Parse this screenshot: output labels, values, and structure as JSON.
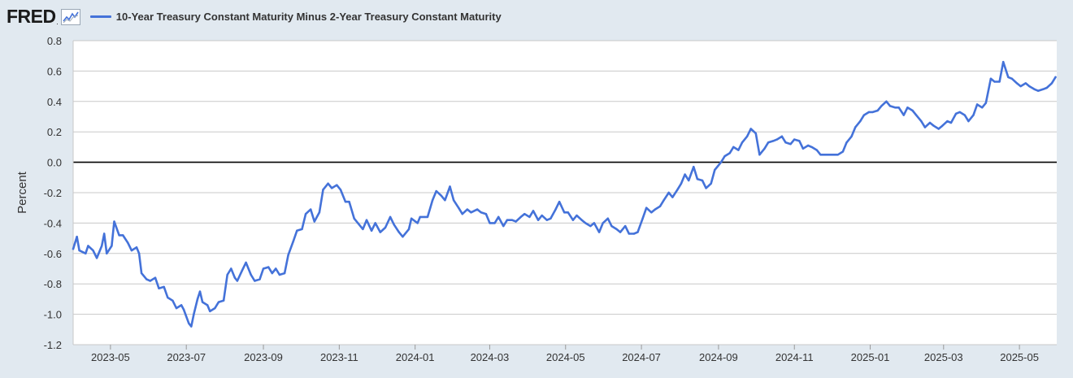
{
  "header": {
    "logo_text": "FRED",
    "logo_icon": "graph-icon",
    "legend_label": "10-Year Treasury Constant Maturity Minus 2-Year Treasury Constant Maturity"
  },
  "chart_data": {
    "type": "line",
    "ylabel": "Percent",
    "xlabel": "",
    "ylim": [
      -1.2,
      0.8
    ],
    "yticks": [
      "0.8",
      "0.6",
      "0.4",
      "0.2",
      "0.0",
      "-0.2",
      "-0.4",
      "-0.6",
      "-0.8",
      "-1.0",
      "-1.2"
    ],
    "xlim": [
      "2023-04-01",
      "2025-05-31"
    ],
    "xticks": [
      "2023-05",
      "2023-07",
      "2023-09",
      "2023-11",
      "2024-01",
      "2024-03",
      "2024-05",
      "2024-07",
      "2024-09",
      "2024-11",
      "2025-01",
      "2025-03",
      "2025-05"
    ],
    "grid": "horizontal",
    "zero_line": true,
    "line_color": "#4472d9",
    "series": [
      {
        "name": "10-Year Treasury Constant Maturity Minus 2-Year Treasury Constant Maturity",
        "points": [
          [
            "2023-04-01",
            -0.57
          ],
          [
            "2023-04-04",
            -0.49
          ],
          [
            "2023-04-06",
            -0.58
          ],
          [
            "2023-04-11",
            -0.6
          ],
          [
            "2023-04-13",
            -0.55
          ],
          [
            "2023-04-17",
            -0.58
          ],
          [
            "2023-04-20",
            -0.63
          ],
          [
            "2023-04-24",
            -0.55
          ],
          [
            "2023-04-26",
            -0.47
          ],
          [
            "2023-04-28",
            -0.6
          ],
          [
            "2023-05-02",
            -0.55
          ],
          [
            "2023-05-04",
            -0.39
          ],
          [
            "2023-05-08",
            -0.48
          ],
          [
            "2023-05-11",
            -0.48
          ],
          [
            "2023-05-15",
            -0.53
          ],
          [
            "2023-05-18",
            -0.58
          ],
          [
            "2023-05-22",
            -0.56
          ],
          [
            "2023-05-24",
            -0.6
          ],
          [
            "2023-05-26",
            -0.73
          ],
          [
            "2023-05-30",
            -0.77
          ],
          [
            "2023-06-02",
            -0.78
          ],
          [
            "2023-06-06",
            -0.76
          ],
          [
            "2023-06-09",
            -0.83
          ],
          [
            "2023-06-13",
            -0.82
          ],
          [
            "2023-06-16",
            -0.89
          ],
          [
            "2023-06-20",
            -0.91
          ],
          [
            "2023-06-23",
            -0.96
          ],
          [
            "2023-06-27",
            -0.94
          ],
          [
            "2023-06-29",
            -0.97
          ],
          [
            "2023-07-03",
            -1.06
          ],
          [
            "2023-07-05",
            -1.08
          ],
          [
            "2023-07-07",
            -1.0
          ],
          [
            "2023-07-10",
            -0.9
          ],
          [
            "2023-07-12",
            -0.85
          ],
          [
            "2023-07-14",
            -0.92
          ],
          [
            "2023-07-18",
            -0.94
          ],
          [
            "2023-07-20",
            -0.98
          ],
          [
            "2023-07-24",
            -0.96
          ],
          [
            "2023-07-27",
            -0.92
          ],
          [
            "2023-07-31",
            -0.91
          ],
          [
            "2023-08-03",
            -0.74
          ],
          [
            "2023-08-06",
            -0.7
          ],
          [
            "2023-08-09",
            -0.76
          ],
          [
            "2023-08-11",
            -0.78
          ],
          [
            "2023-08-15",
            -0.71
          ],
          [
            "2023-08-18",
            -0.66
          ],
          [
            "2023-08-22",
            -0.74
          ],
          [
            "2023-08-25",
            -0.78
          ],
          [
            "2023-08-29",
            -0.77
          ],
          [
            "2023-09-01",
            -0.7
          ],
          [
            "2023-09-05",
            -0.69
          ],
          [
            "2023-09-08",
            -0.73
          ],
          [
            "2023-09-11",
            -0.7
          ],
          [
            "2023-09-14",
            -0.74
          ],
          [
            "2023-09-18",
            -0.73
          ],
          [
            "2023-09-21",
            -0.61
          ],
          [
            "2023-09-25",
            -0.52
          ],
          [
            "2023-09-28",
            -0.45
          ],
          [
            "2023-10-02",
            -0.44
          ],
          [
            "2023-10-05",
            -0.34
          ],
          [
            "2023-10-09",
            -0.31
          ],
          [
            "2023-10-12",
            -0.39
          ],
          [
            "2023-10-16",
            -0.33
          ],
          [
            "2023-10-19",
            -0.18
          ],
          [
            "2023-10-23",
            -0.14
          ],
          [
            "2023-10-26",
            -0.17
          ],
          [
            "2023-10-30",
            -0.15
          ],
          [
            "2023-11-02",
            -0.18
          ],
          [
            "2023-11-06",
            -0.26
          ],
          [
            "2023-11-09",
            -0.26
          ],
          [
            "2023-11-13",
            -0.37
          ],
          [
            "2023-11-16",
            -0.4
          ],
          [
            "2023-11-20",
            -0.44
          ],
          [
            "2023-11-23",
            -0.38
          ],
          [
            "2023-11-27",
            -0.45
          ],
          [
            "2023-11-30",
            -0.4
          ],
          [
            "2023-12-04",
            -0.46
          ],
          [
            "2023-12-08",
            -0.43
          ],
          [
            "2023-12-12",
            -0.36
          ],
          [
            "2023-12-15",
            -0.41
          ],
          [
            "2023-12-19",
            -0.46
          ],
          [
            "2023-12-22",
            -0.49
          ],
          [
            "2023-12-27",
            -0.44
          ],
          [
            "2023-12-29",
            -0.37
          ],
          [
            "2024-01-03",
            -0.4
          ],
          [
            "2024-01-05",
            -0.36
          ],
          [
            "2024-01-09",
            -0.36
          ],
          [
            "2024-01-11",
            -0.36
          ],
          [
            "2024-01-15",
            -0.25
          ],
          [
            "2024-01-18",
            -0.19
          ],
          [
            "2024-01-22",
            -0.22
          ],
          [
            "2024-01-25",
            -0.25
          ],
          [
            "2024-01-29",
            -0.16
          ],
          [
            "2024-02-01",
            -0.25
          ],
          [
            "2024-02-05",
            -0.3
          ],
          [
            "2024-02-08",
            -0.34
          ],
          [
            "2024-02-12",
            -0.31
          ],
          [
            "2024-02-15",
            -0.33
          ],
          [
            "2024-02-20",
            -0.31
          ],
          [
            "2024-02-23",
            -0.33
          ],
          [
            "2024-02-27",
            -0.34
          ],
          [
            "2024-03-01",
            -0.4
          ],
          [
            "2024-03-05",
            -0.4
          ],
          [
            "2024-03-08",
            -0.36
          ],
          [
            "2024-03-12",
            -0.42
          ],
          [
            "2024-03-15",
            -0.38
          ],
          [
            "2024-03-19",
            -0.38
          ],
          [
            "2024-03-22",
            -0.39
          ],
          [
            "2024-03-26",
            -0.36
          ],
          [
            "2024-03-29",
            -0.34
          ],
          [
            "2024-04-02",
            -0.36
          ],
          [
            "2024-04-05",
            -0.32
          ],
          [
            "2024-04-09",
            -0.38
          ],
          [
            "2024-04-12",
            -0.35
          ],
          [
            "2024-04-16",
            -0.38
          ],
          [
            "2024-04-19",
            -0.37
          ],
          [
            "2024-04-23",
            -0.31
          ],
          [
            "2024-04-26",
            -0.26
          ],
          [
            "2024-04-30",
            -0.33
          ],
          [
            "2024-05-03",
            -0.33
          ],
          [
            "2024-05-07",
            -0.38
          ],
          [
            "2024-05-10",
            -0.35
          ],
          [
            "2024-05-14",
            -0.38
          ],
          [
            "2024-05-17",
            -0.4
          ],
          [
            "2024-05-21",
            -0.42
          ],
          [
            "2024-05-24",
            -0.4
          ],
          [
            "2024-05-28",
            -0.46
          ],
          [
            "2024-05-31",
            -0.4
          ],
          [
            "2024-06-04",
            -0.37
          ],
          [
            "2024-06-07",
            -0.42
          ],
          [
            "2024-06-11",
            -0.44
          ],
          [
            "2024-06-14",
            -0.46
          ],
          [
            "2024-06-18",
            -0.42
          ],
          [
            "2024-06-21",
            -0.47
          ],
          [
            "2024-06-25",
            -0.47
          ],
          [
            "2024-06-28",
            -0.46
          ],
          [
            "2024-07-02",
            -0.37
          ],
          [
            "2024-07-05",
            -0.3
          ],
          [
            "2024-07-09",
            -0.33
          ],
          [
            "2024-07-12",
            -0.31
          ],
          [
            "2024-07-16",
            -0.29
          ],
          [
            "2024-07-19",
            -0.25
          ],
          [
            "2024-07-23",
            -0.2
          ],
          [
            "2024-07-26",
            -0.23
          ],
          [
            "2024-07-30",
            -0.18
          ],
          [
            "2024-08-02",
            -0.14
          ],
          [
            "2024-08-05",
            -0.08
          ],
          [
            "2024-08-08",
            -0.12
          ],
          [
            "2024-08-12",
            -0.03
          ],
          [
            "2024-08-15",
            -0.11
          ],
          [
            "2024-08-19",
            -0.12
          ],
          [
            "2024-08-22",
            -0.17
          ],
          [
            "2024-08-26",
            -0.14
          ],
          [
            "2024-08-29",
            -0.05
          ],
          [
            "2024-09-03",
            0.0
          ],
          [
            "2024-09-06",
            0.04
          ],
          [
            "2024-09-10",
            0.06
          ],
          [
            "2024-09-13",
            0.1
          ],
          [
            "2024-09-17",
            0.08
          ],
          [
            "2024-09-20",
            0.13
          ],
          [
            "2024-09-24",
            0.17
          ],
          [
            "2024-09-27",
            0.22
          ],
          [
            "2024-10-01",
            0.19
          ],
          [
            "2024-10-04",
            0.05
          ],
          [
            "2024-10-08",
            0.09
          ],
          [
            "2024-10-11",
            0.13
          ],
          [
            "2024-10-15",
            0.14
          ],
          [
            "2024-10-18",
            0.15
          ],
          [
            "2024-10-22",
            0.17
          ],
          [
            "2024-10-25",
            0.13
          ],
          [
            "2024-10-29",
            0.12
          ],
          [
            "2024-11-01",
            0.15
          ],
          [
            "2024-11-05",
            0.14
          ],
          [
            "2024-11-08",
            0.09
          ],
          [
            "2024-11-12",
            0.11
          ],
          [
            "2024-11-15",
            0.1
          ],
          [
            "2024-11-19",
            0.08
          ],
          [
            "2024-11-22",
            0.05
          ],
          [
            "2024-11-26",
            0.05
          ],
          [
            "2024-11-29",
            0.05
          ],
          [
            "2024-12-03",
            0.05
          ],
          [
            "2024-12-06",
            0.05
          ],
          [
            "2024-12-10",
            0.07
          ],
          [
            "2024-12-13",
            0.13
          ],
          [
            "2024-12-17",
            0.17
          ],
          [
            "2024-12-20",
            0.23
          ],
          [
            "2024-12-24",
            0.27
          ],
          [
            "2024-12-27",
            0.31
          ],
          [
            "2024-12-31",
            0.33
          ],
          [
            "2025-01-03",
            0.33
          ],
          [
            "2025-01-07",
            0.34
          ],
          [
            "2025-01-10",
            0.37
          ],
          [
            "2025-01-14",
            0.4
          ],
          [
            "2025-01-17",
            0.37
          ],
          [
            "2025-01-21",
            0.36
          ],
          [
            "2025-01-24",
            0.36
          ],
          [
            "2025-01-28",
            0.31
          ],
          [
            "2025-01-31",
            0.36
          ],
          [
            "2025-02-04",
            0.34
          ],
          [
            "2025-02-07",
            0.31
          ],
          [
            "2025-02-11",
            0.27
          ],
          [
            "2025-02-14",
            0.23
          ],
          [
            "2025-02-18",
            0.26
          ],
          [
            "2025-02-21",
            0.24
          ],
          [
            "2025-02-25",
            0.22
          ],
          [
            "2025-02-28",
            0.24
          ],
          [
            "2025-03-04",
            0.27
          ],
          [
            "2025-03-07",
            0.26
          ],
          [
            "2025-03-11",
            0.32
          ],
          [
            "2025-03-14",
            0.33
          ],
          [
            "2025-03-18",
            0.31
          ],
          [
            "2025-03-21",
            0.27
          ],
          [
            "2025-03-25",
            0.31
          ],
          [
            "2025-03-28",
            0.38
          ],
          [
            "2025-04-01",
            0.36
          ],
          [
            "2025-04-04",
            0.39
          ],
          [
            "2025-04-08",
            0.55
          ],
          [
            "2025-04-11",
            0.53
          ],
          [
            "2025-04-15",
            0.53
          ],
          [
            "2025-04-18",
            0.66
          ],
          [
            "2025-04-22",
            0.56
          ],
          [
            "2025-04-25",
            0.55
          ],
          [
            "2025-04-29",
            0.52
          ],
          [
            "2025-05-02",
            0.5
          ],
          [
            "2025-05-06",
            0.52
          ],
          [
            "2025-05-09",
            0.5
          ],
          [
            "2025-05-13",
            0.48
          ],
          [
            "2025-05-16",
            0.47
          ],
          [
            "2025-05-20",
            0.48
          ],
          [
            "2025-05-23",
            0.49
          ],
          [
            "2025-05-27",
            0.52
          ],
          [
            "2025-05-30",
            0.56
          ]
        ]
      }
    ]
  }
}
